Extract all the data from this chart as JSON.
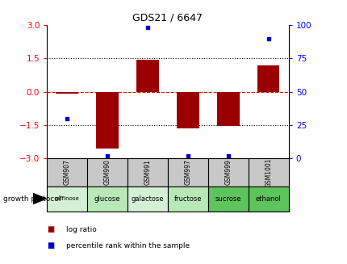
{
  "title": "GDS21 / 6647",
  "samples": [
    "GSM907",
    "GSM990",
    "GSM991",
    "GSM997",
    "GSM999",
    "GSM1001"
  ],
  "protocols": [
    "raffinose",
    "glucose",
    "galactose",
    "fructose",
    "sucrose",
    "ethanol"
  ],
  "log_ratio": [
    -0.1,
    -2.55,
    1.45,
    -1.65,
    -1.55,
    1.2
  ],
  "percentile_rank": [
    30,
    2,
    98,
    2,
    2,
    90
  ],
  "bar_color": "#9B0000",
  "dot_color": "#0000CC",
  "ylim_left": [
    -3,
    3
  ],
  "ylim_right": [
    0,
    100
  ],
  "yticks_left": [
    -3,
    -1.5,
    0,
    1.5,
    3
  ],
  "yticks_right": [
    0,
    25,
    50,
    75,
    100
  ],
  "protocol_colors": [
    "#d4f0d4",
    "#b8e8b8",
    "#d4f0d4",
    "#b8e8b8",
    "#5ec45e",
    "#5ec45e"
  ],
  "sample_bg_color": "#c8c8c8",
  "legend_red_label": "log ratio",
  "legend_blue_label": "percentile rank within the sample",
  "growth_protocol_label": "growth protocol",
  "title_fontsize": 9,
  "tick_fontsize": 7.5,
  "bar_width": 0.55
}
